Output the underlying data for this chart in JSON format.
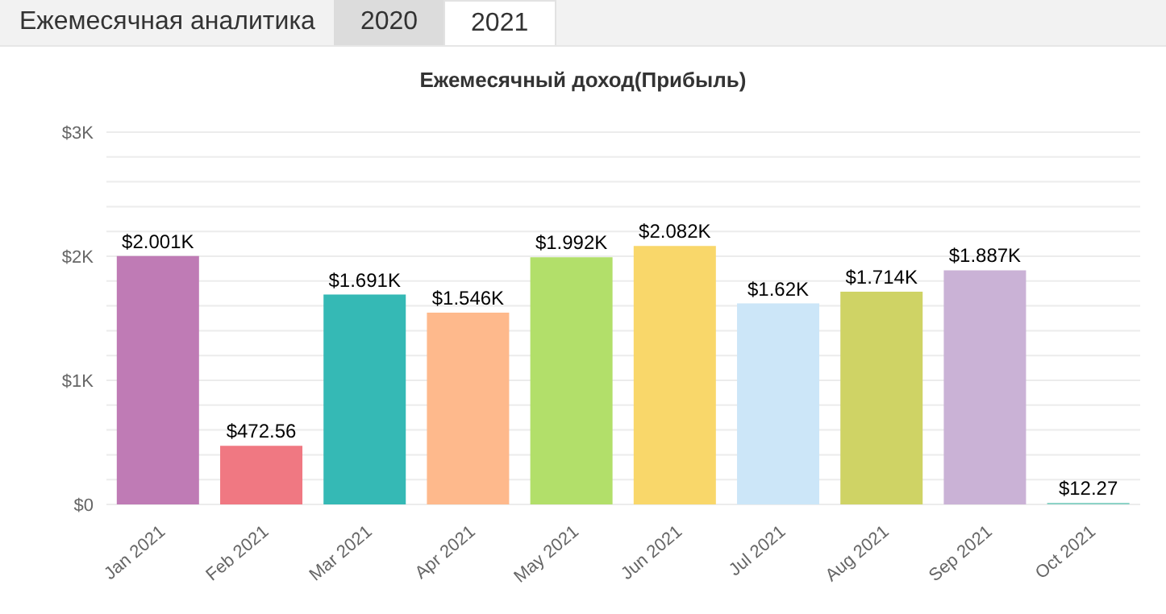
{
  "chart_data": {
    "type": "bar",
    "title": "Ежемесячный доход(Прибыль)",
    "annotations": [
      "Ежемесячная аналитика",
      "2020",
      "2021"
    ],
    "categories": [
      "Jan 2021",
      "Feb 2021",
      "Mar 2021",
      "Apr 2021",
      "May 2021",
      "Jun 2021",
      "Jul 2021",
      "Aug 2021",
      "Sep 2021",
      "Oct 2021"
    ],
    "values": [
      2001,
      472.56,
      1691,
      1546,
      1992,
      2082,
      1620,
      1714,
      1887,
      12.27
    ],
    "value_labels": [
      "$2.001K",
      "$472.56",
      "$1.691K",
      "$1.546K",
      "$1.992K",
      "$2.082K",
      "$1.62K",
      "$1.714K",
      "$1.887K",
      "$12.27"
    ],
    "colors": [
      "#bf7bb5",
      "#f07882",
      "#35b9b5",
      "#feb98c",
      "#b2df6a",
      "#f9d76a",
      "#cce6f8",
      "#cfd365",
      "#cab2d6",
      "#8dd3c7"
    ],
    "ylim": [
      0,
      3000
    ],
    "yticks": [
      {
        "value": 0,
        "label": "$0"
      },
      {
        "value": 200,
        "label": null
      },
      {
        "value": 400,
        "label": null
      },
      {
        "value": 600,
        "label": null
      },
      {
        "value": 800,
        "label": null
      },
      {
        "value": 1000,
        "label": "$1K"
      },
      {
        "value": 1200,
        "label": null
      },
      {
        "value": 1400,
        "label": null
      },
      {
        "value": 1600,
        "label": null
      },
      {
        "value": 1800,
        "label": null
      },
      {
        "value": 2000,
        "label": "$2K"
      },
      {
        "value": 2200,
        "label": null
      },
      {
        "value": 2400,
        "label": null
      },
      {
        "value": 2600,
        "label": null
      },
      {
        "value": 2800,
        "label": null
      },
      {
        "value": 3000,
        "label": "$3K"
      }
    ],
    "grid": "y"
  }
}
